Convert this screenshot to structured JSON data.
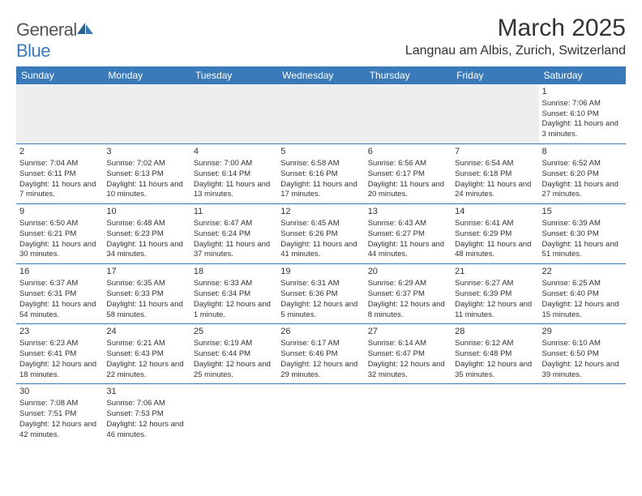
{
  "header": {
    "logo_general": "General",
    "logo_blue": "Blue",
    "month_title": "March 2025",
    "location": "Langnau am Albis, Zurich, Switzerland"
  },
  "colors": {
    "header_bg": "#3a7ab8",
    "header_text": "#ffffff",
    "grid_line": "#3a7ab8",
    "empty_bg": "#eeeeee",
    "text": "#333333"
  },
  "day_headers": [
    "Sunday",
    "Monday",
    "Tuesday",
    "Wednesday",
    "Thursday",
    "Friday",
    "Saturday"
  ],
  "weeks": [
    [
      null,
      null,
      null,
      null,
      null,
      null,
      {
        "n": "1",
        "sr": "7:06 AM",
        "ss": "6:10 PM",
        "dl": "11 hours and 3 minutes."
      }
    ],
    [
      {
        "n": "2",
        "sr": "7:04 AM",
        "ss": "6:11 PM",
        "dl": "11 hours and 7 minutes."
      },
      {
        "n": "3",
        "sr": "7:02 AM",
        "ss": "6:13 PM",
        "dl": "11 hours and 10 minutes."
      },
      {
        "n": "4",
        "sr": "7:00 AM",
        "ss": "6:14 PM",
        "dl": "11 hours and 13 minutes."
      },
      {
        "n": "5",
        "sr": "6:58 AM",
        "ss": "6:16 PM",
        "dl": "11 hours and 17 minutes."
      },
      {
        "n": "6",
        "sr": "6:56 AM",
        "ss": "6:17 PM",
        "dl": "11 hours and 20 minutes."
      },
      {
        "n": "7",
        "sr": "6:54 AM",
        "ss": "6:18 PM",
        "dl": "11 hours and 24 minutes."
      },
      {
        "n": "8",
        "sr": "6:52 AM",
        "ss": "6:20 PM",
        "dl": "11 hours and 27 minutes."
      }
    ],
    [
      {
        "n": "9",
        "sr": "6:50 AM",
        "ss": "6:21 PM",
        "dl": "11 hours and 30 minutes."
      },
      {
        "n": "10",
        "sr": "6:48 AM",
        "ss": "6:23 PM",
        "dl": "11 hours and 34 minutes."
      },
      {
        "n": "11",
        "sr": "6:47 AM",
        "ss": "6:24 PM",
        "dl": "11 hours and 37 minutes."
      },
      {
        "n": "12",
        "sr": "6:45 AM",
        "ss": "6:26 PM",
        "dl": "11 hours and 41 minutes."
      },
      {
        "n": "13",
        "sr": "6:43 AM",
        "ss": "6:27 PM",
        "dl": "11 hours and 44 minutes."
      },
      {
        "n": "14",
        "sr": "6:41 AM",
        "ss": "6:29 PM",
        "dl": "11 hours and 48 minutes."
      },
      {
        "n": "15",
        "sr": "6:39 AM",
        "ss": "6:30 PM",
        "dl": "11 hours and 51 minutes."
      }
    ],
    [
      {
        "n": "16",
        "sr": "6:37 AM",
        "ss": "6:31 PM",
        "dl": "11 hours and 54 minutes."
      },
      {
        "n": "17",
        "sr": "6:35 AM",
        "ss": "6:33 PM",
        "dl": "11 hours and 58 minutes."
      },
      {
        "n": "18",
        "sr": "6:33 AM",
        "ss": "6:34 PM",
        "dl": "12 hours and 1 minute."
      },
      {
        "n": "19",
        "sr": "6:31 AM",
        "ss": "6:36 PM",
        "dl": "12 hours and 5 minutes."
      },
      {
        "n": "20",
        "sr": "6:29 AM",
        "ss": "6:37 PM",
        "dl": "12 hours and 8 minutes."
      },
      {
        "n": "21",
        "sr": "6:27 AM",
        "ss": "6:39 PM",
        "dl": "12 hours and 11 minutes."
      },
      {
        "n": "22",
        "sr": "6:25 AM",
        "ss": "6:40 PM",
        "dl": "12 hours and 15 minutes."
      }
    ],
    [
      {
        "n": "23",
        "sr": "6:23 AM",
        "ss": "6:41 PM",
        "dl": "12 hours and 18 minutes."
      },
      {
        "n": "24",
        "sr": "6:21 AM",
        "ss": "6:43 PM",
        "dl": "12 hours and 22 minutes."
      },
      {
        "n": "25",
        "sr": "6:19 AM",
        "ss": "6:44 PM",
        "dl": "12 hours and 25 minutes."
      },
      {
        "n": "26",
        "sr": "6:17 AM",
        "ss": "6:46 PM",
        "dl": "12 hours and 29 minutes."
      },
      {
        "n": "27",
        "sr": "6:14 AM",
        "ss": "6:47 PM",
        "dl": "12 hours and 32 minutes."
      },
      {
        "n": "28",
        "sr": "6:12 AM",
        "ss": "6:48 PM",
        "dl": "12 hours and 35 minutes."
      },
      {
        "n": "29",
        "sr": "6:10 AM",
        "ss": "6:50 PM",
        "dl": "12 hours and 39 minutes."
      }
    ],
    [
      {
        "n": "30",
        "sr": "7:08 AM",
        "ss": "7:51 PM",
        "dl": "12 hours and 42 minutes."
      },
      {
        "n": "31",
        "sr": "7:06 AM",
        "ss": "7:53 PM",
        "dl": "12 hours and 46 minutes."
      },
      null,
      null,
      null,
      null,
      null
    ]
  ],
  "labels": {
    "sunrise": "Sunrise: ",
    "sunset": "Sunset: ",
    "daylight": "Daylight: "
  }
}
